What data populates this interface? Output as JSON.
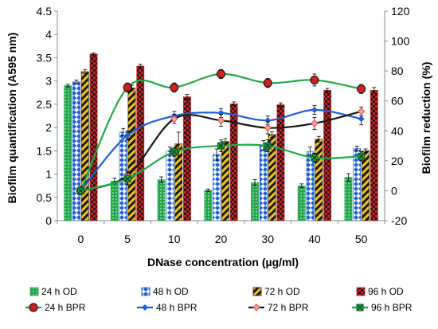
{
  "chart_data": {
    "type": "bar",
    "xlabel": "DNase concentration (µg/ml)",
    "ylabel_left": "Biofilm quantification (A595 nm)",
    "ylabel_right": "Biofilm  reduction (%)",
    "categories": [
      "0",
      "5",
      "10",
      "20",
      "30",
      "40",
      "50"
    ],
    "y_left": {
      "min": 0,
      "max": 4.5,
      "step": 0.5,
      "ticks": [
        "0",
        "0.5",
        "1",
        "1.5",
        "2",
        "2.5",
        "3",
        "3.5",
        "4",
        "4.5"
      ]
    },
    "y_right": {
      "min": -20,
      "max": 120,
      "step": 20,
      "ticks": [
        "-20",
        "0",
        "20",
        "40",
        "60",
        "80",
        "100",
        "120"
      ]
    },
    "grid": false,
    "legend_position": "bottom",
    "bar_series": [
      {
        "name": "24 h OD",
        "values": [
          2.9,
          0.85,
          0.88,
          0.65,
          0.82,
          0.75,
          0.93
        ],
        "errors": [
          0.03,
          0.06,
          0.06,
          0.03,
          0.06,
          0.04,
          0.08
        ],
        "color": "#22a84a",
        "pattern": "dots"
      },
      {
        "name": "48 h OD",
        "values": [
          2.98,
          1.9,
          1.5,
          1.42,
          1.62,
          1.48,
          1.55
        ],
        "errors": [
          0.04,
          0.08,
          0.08,
          0.12,
          0.1,
          0.1,
          0.05
        ],
        "color": "#1f5fd6",
        "pattern": "diamonds"
      },
      {
        "name": "72 h OD",
        "values": [
          3.2,
          2.85,
          1.65,
          1.7,
          1.85,
          1.75,
          1.5
        ],
        "errors": [
          0.04,
          0.06,
          0.25,
          0.06,
          0.06,
          0.06,
          0.04
        ],
        "color": "#1a1a1a",
        "pattern": "stripes-yellow"
      },
      {
        "name": "96 h OD",
        "values": [
          3.58,
          3.32,
          2.66,
          2.51,
          2.49,
          2.8,
          2.8
        ],
        "errors": [
          0.02,
          0.04,
          0.05,
          0.04,
          0.04,
          0.04,
          0.06
        ],
        "color": "#d41f1f",
        "pattern": "checker"
      }
    ],
    "line_series": [
      {
        "name": "24 h BPR",
        "values": [
          0,
          69,
          69,
          78,
          72,
          74,
          68
        ],
        "errors": [
          0,
          3,
          3,
          3,
          3,
          4,
          3
        ],
        "color": "#22a84a",
        "marker": "circle-red"
      },
      {
        "name": "48 h BPR",
        "values": [
          0,
          37,
          50,
          52,
          47,
          54,
          48
        ],
        "errors": [
          0,
          3,
          3,
          3,
          3,
          3,
          4
        ],
        "color": "#1f5fd6",
        "marker": "diamond-blue"
      },
      {
        "name": "72 h BPR",
        "values": [
          0,
          10,
          48,
          47,
          42,
          45,
          53
        ],
        "errors": [
          0,
          3,
          3,
          4,
          4,
          4,
          3
        ],
        "color": "#1a1a1a",
        "marker": "diamond-pink"
      },
      {
        "name": "96 h BPR",
        "values": [
          0,
          8,
          26,
          30,
          30,
          22,
          23
        ],
        "errors": [
          0,
          4,
          3,
          4,
          4,
          3,
          3
        ],
        "color": "#22a84a",
        "marker": "x-square"
      }
    ]
  }
}
